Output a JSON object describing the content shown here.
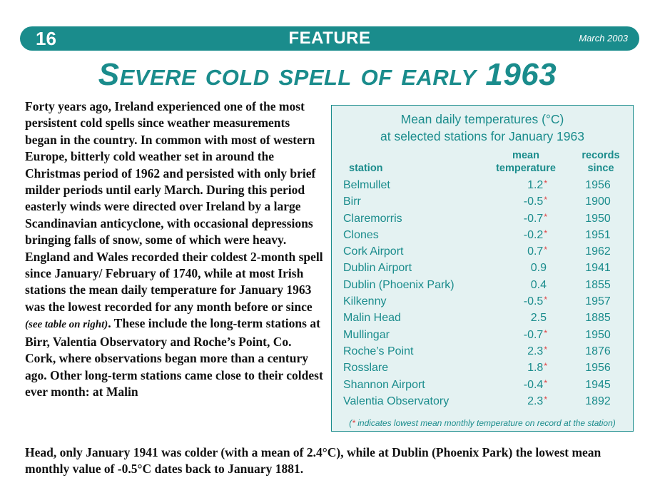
{
  "header": {
    "page_number": "16",
    "section": "FEATURE",
    "date": "March 2003",
    "bar_color": "#1a8c8c"
  },
  "article": {
    "title": "Severe cold spell of early 1963",
    "body_part1": "Forty years ago, Ireland experienced one of the most persistent cold spells since weather measurements began in the country. In common with most of western Europe, bitterly cold weather set in around the Christmas period of 1962 and persisted with only brief milder periods until early March. During this period easterly winds were directed over Ireland by a large Scandinavian anticyclone, with occasional depressions bringing falls of snow, some of which were heavy. England and Wales recorded their coldest 2-month spell since January/ February of 1740, while at most Irish stations the mean daily temperature for January 1963 was the lowest recorded for any month before or since ",
    "table_reference": "(see table on right)",
    "body_part2": ". These include the long-term stations at Birr, Valentia Observatory and Roche’s Point, Co. Cork, where observations began more than a century ago. Other long-term stations came close to their coldest ever month: at Malin",
    "body_part3": "Head, only January 1941 was colder (with a mean of 2.4°C), while at Dublin (Phoenix Park) the lowest mean monthly value of -0.5°C dates back to January 1881."
  },
  "table": {
    "title_line1": "Mean daily temperatures (°C)",
    "title_line2": "at selected stations for January 1963",
    "headers": {
      "station": "station",
      "mean_line1": "mean",
      "mean_line2": "temperature",
      "records_line1": "records",
      "records_line2": "since"
    },
    "rows": [
      {
        "station": "Belmullet",
        "temp": "1.2",
        "mark": "*",
        "since": "1956"
      },
      {
        "station": "Birr",
        "temp": "-0.5",
        "mark": "*",
        "since": "1900"
      },
      {
        "station": "Claremorris",
        "temp": "-0.7",
        "mark": "*",
        "since": "1950"
      },
      {
        "station": "Clones",
        "temp": "-0.2",
        "mark": "*",
        "since": "1951"
      },
      {
        "station": "Cork Airport",
        "temp": "0.7",
        "mark": "*",
        "since": "1962"
      },
      {
        "station": "Dublin Airport",
        "temp": "0.9",
        "mark": "",
        "since": "1941"
      },
      {
        "station": "Dublin (Phoenix Park)",
        "temp": "0.4",
        "mark": "",
        "since": "1855"
      },
      {
        "station": "Kilkenny",
        "temp": "-0.5",
        "mark": "*",
        "since": "1957"
      },
      {
        "station": "Malin Head",
        "temp": "2.5",
        "mark": "",
        "since": "1885"
      },
      {
        "station": "Mullingar",
        "temp": "-0.7",
        "mark": "*",
        "since": "1950"
      },
      {
        "station": "Roche’s Point",
        "temp": "2.3",
        "mark": "*",
        "since": "1876"
      },
      {
        "station": "Rosslare",
        "temp": "1.8",
        "mark": "*",
        "since": "1956"
      },
      {
        "station": "Shannon Airport",
        "temp": "-0.4",
        "mark": "*",
        "since": "1945"
      },
      {
        "station": "Valentia Observatory",
        "temp": "2.3",
        "mark": "*",
        "since": "1892"
      }
    ],
    "footnote_open": "(",
    "footnote_star": "*",
    "footnote_text": " indicates lowest mean monthly temperature on record at the station)",
    "accent_color": "#1a8c8c",
    "background_color": "#e4f2f2",
    "asterisk_color": "#e04040"
  }
}
